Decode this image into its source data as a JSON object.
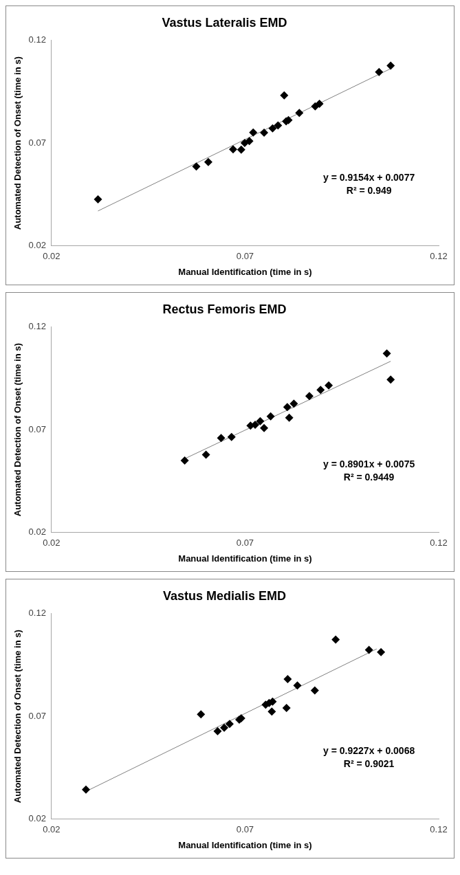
{
  "chart_data": [
    {
      "type": "scatter",
      "title": "Vastus Lateralis EMD",
      "xlabel": "Manual Identification (time in s)",
      "ylabel": "Automated Detection of Onset (time in s)",
      "xlim": [
        0.02,
        0.12
      ],
      "xticks": [
        0.02,
        0.07,
        0.12
      ],
      "ylim": [
        0.02,
        0.12
      ],
      "yticks": [
        0.02,
        0.07,
        0.12
      ],
      "grid": false,
      "legend": false,
      "annotations": [
        "y = 0.9154x + 0.0077",
        "R² = 0.949"
      ],
      "series": [
        {
          "marker": "diamond",
          "color": "#000000",
          "x": [
            0.032,
            0.0574,
            0.0605,
            0.0669,
            0.069,
            0.0699,
            0.0711,
            0.0721,
            0.0749,
            0.0771,
            0.0785,
            0.0801,
            0.0806,
            0.0812,
            0.084,
            0.0881,
            0.0892,
            0.1046,
            0.1076
          ],
          "values": [
            0.0427,
            0.0586,
            0.0608,
            0.067,
            0.0668,
            0.0701,
            0.071,
            0.0752,
            0.0751,
            0.0772,
            0.0786,
            0.0932,
            0.0806,
            0.0812,
            0.0847,
            0.0879,
            0.0891,
            0.1046,
            0.1077
          ]
        },
        {
          "type": "line",
          "marker": "none",
          "color": "#808080",
          "x": [
            0.032,
            0.1076
          ],
          "values": [
            0.037,
            0.1062
          ]
        }
      ]
    },
    {
      "type": "scatter",
      "title": "Rectus Femoris EMD",
      "xlabel": "Manual Identification (time in s)",
      "ylabel": "Automated Detection of Onset (time in s)",
      "xlim": [
        0.02,
        0.12
      ],
      "xticks": [
        0.02,
        0.07,
        0.12
      ],
      "ylim": [
        0.02,
        0.12
      ],
      "yticks": [
        0.02,
        0.07,
        0.12
      ],
      "grid": false,
      "legend": false,
      "annotations": [
        "y = 0.8901x + 0.0075",
        "R² = 0.9449"
      ],
      "series": [
        {
          "marker": "diamond",
          "color": "#000000",
          "x": [
            0.0544,
            0.0599,
            0.0638,
            0.0665,
            0.0714,
            0.0726,
            0.0739,
            0.0749,
            0.0766,
            0.0809,
            0.0814,
            0.0826,
            0.0866,
            0.0895,
            0.0916,
            0.1066,
            0.1076
          ],
          "values": [
            0.055,
            0.0579,
            0.066,
            0.0665,
            0.072,
            0.0724,
            0.0742,
            0.0708,
            0.0765,
            0.081,
            0.0758,
            0.0827,
            0.0864,
            0.0894,
            0.0915,
            0.1071,
            0.0944
          ]
        },
        {
          "type": "line",
          "marker": "none",
          "color": "#808080",
          "x": [
            0.0544,
            0.1076
          ],
          "values": [
            0.0559,
            0.1033
          ]
        }
      ]
    },
    {
      "type": "scatter",
      "title": "Vastus Medialis EMD",
      "xlabel": "Manual Identification (time in s)",
      "ylabel": "Automated Detection of Onset (time in s)",
      "xlim": [
        0.02,
        0.12
      ],
      "xticks": [
        0.02,
        0.07,
        0.12
      ],
      "ylim": [
        0.02,
        0.12
      ],
      "yticks": [
        0.02,
        0.07,
        0.12
      ],
      "grid": false,
      "legend": false,
      "annotations": [
        "y = 0.9227x + 0.0068",
        "R² = 0.9021"
      ],
      "series": [
        {
          "marker": "diamond",
          "color": "#000000",
          "x": [
            0.0289,
            0.0586,
            0.0629,
            0.0646,
            0.066,
            0.0685,
            0.069,
            0.0753,
            0.0762,
            0.0771,
            0.0769,
            0.0807,
            0.081,
            0.0835,
            0.088,
            0.0934,
            0.102,
            0.1051
          ],
          "values": [
            0.0344,
            0.071,
            0.0628,
            0.0645,
            0.0663,
            0.0684,
            0.0691,
            0.0757,
            0.0765,
            0.0772,
            0.0723,
            0.0741,
            0.0881,
            0.085,
            0.0826,
            0.1073,
            0.1023,
            0.1012
          ]
        },
        {
          "type": "line",
          "marker": "none",
          "color": "#808080",
          "x": [
            0.029,
            0.104
          ],
          "values": [
            0.0336,
            0.1028
          ]
        }
      ]
    }
  ]
}
